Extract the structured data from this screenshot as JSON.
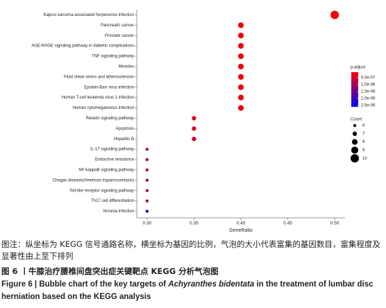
{
  "chart_data": {
    "type": "scatter",
    "x_label": "GeneRatio",
    "categories": [
      "Kaposi sarcoma-associated herpesvirus infection",
      "Pancreatic cancer",
      "Prostate cancer",
      "AGE-RAGE signaling pathway in diabetic complications",
      "TNF signaling pathway",
      "Measles",
      "Fluid shear stress and atherosclerosis",
      "Epstein-Barr virus infection",
      "Human T-cell leukemia virus 1 infection",
      "Human cytomegalovirus infection",
      "Relaxin signaling pathway",
      "Apoptosis",
      "Hepatitis B",
      "IL-17 signaling pathway",
      "Endocrine resistance",
      "NF-kappaB signaling pathway",
      "Chagas disease(American trypanosomiasis)",
      "Toll-like receptor signaling pathway",
      "Th17 cell differentiation",
      "Yersinia infection"
    ],
    "values": [
      0.5,
      0.4,
      0.4,
      0.4,
      0.4,
      0.4,
      0.4,
      0.4,
      0.4,
      0.4,
      0.35,
      0.35,
      0.35,
      0.3,
      0.3,
      0.3,
      0.3,
      0.3,
      0.3,
      0.3
    ],
    "sizes": [
      10,
      8,
      8,
      8,
      8,
      8,
      8,
      8,
      8,
      8,
      7,
      7,
      7,
      6,
      6,
      6,
      6,
      6,
      6,
      6
    ],
    "p_adjust": [
      2e-07,
      2.2e-07,
      2.2e-07,
      2.3e-07,
      2.3e-07,
      2.4e-07,
      2.4e-07,
      2.5e-07,
      2.5e-07,
      2.6e-07,
      3.5e-07,
      3.8e-07,
      6e-07,
      8e-07,
      8.5e-07,
      9e-07,
      9e-07,
      9.5e-07,
      9.5e-07,
      2.55e-06
    ],
    "xlim": [
      0.289,
      0.511
    ],
    "xticks": [
      {
        "value": 0.3,
        "label": "0.30"
      },
      0.35,
      {
        "value": 0.4,
        "label": "0.40"
      },
      0.45,
      {
        "value": 0.5,
        "label": "0.50"
      }
    ],
    "color_title": "p.adjust",
    "color_low": "#ff0000",
    "color_high": "#0000ff",
    "color_lim": [
      1e-07,
      2.6e-06
    ],
    "color_ticks": [
      {
        "value": 5e-07,
        "label": "5.0e-07"
      },
      {
        "value": 1e-06,
        "label": "1.0e-06"
      },
      {
        "value": 1.5e-06,
        "label": "1.5e-06"
      },
      {
        "value": 2e-06,
        "label": "2.0e-06"
      },
      {
        "value": 2.5e-06,
        "label": "2.5e-06"
      }
    ],
    "size_title": "Count",
    "size_ticks": [
      6,
      7,
      8,
      9,
      10
    ]
  },
  "caption": {
    "note": "图注：纵坐标为 KEGG 信号通路名称，横坐标为基因的比例，气泡的大小代表富集的基因数目，富集程度及显著性由上至下排列",
    "title_cn": "图 6 丨牛膝治疗腰椎间盘突出症关键靶点 KEGG 分析气泡图",
    "title_en": [
      "Figure 6 | Bubble chart of the key targets of ",
      "Achyranthes bidentata",
      " in the treatment of lumbar disc herniation based on the KEGG analysis"
    ]
  }
}
